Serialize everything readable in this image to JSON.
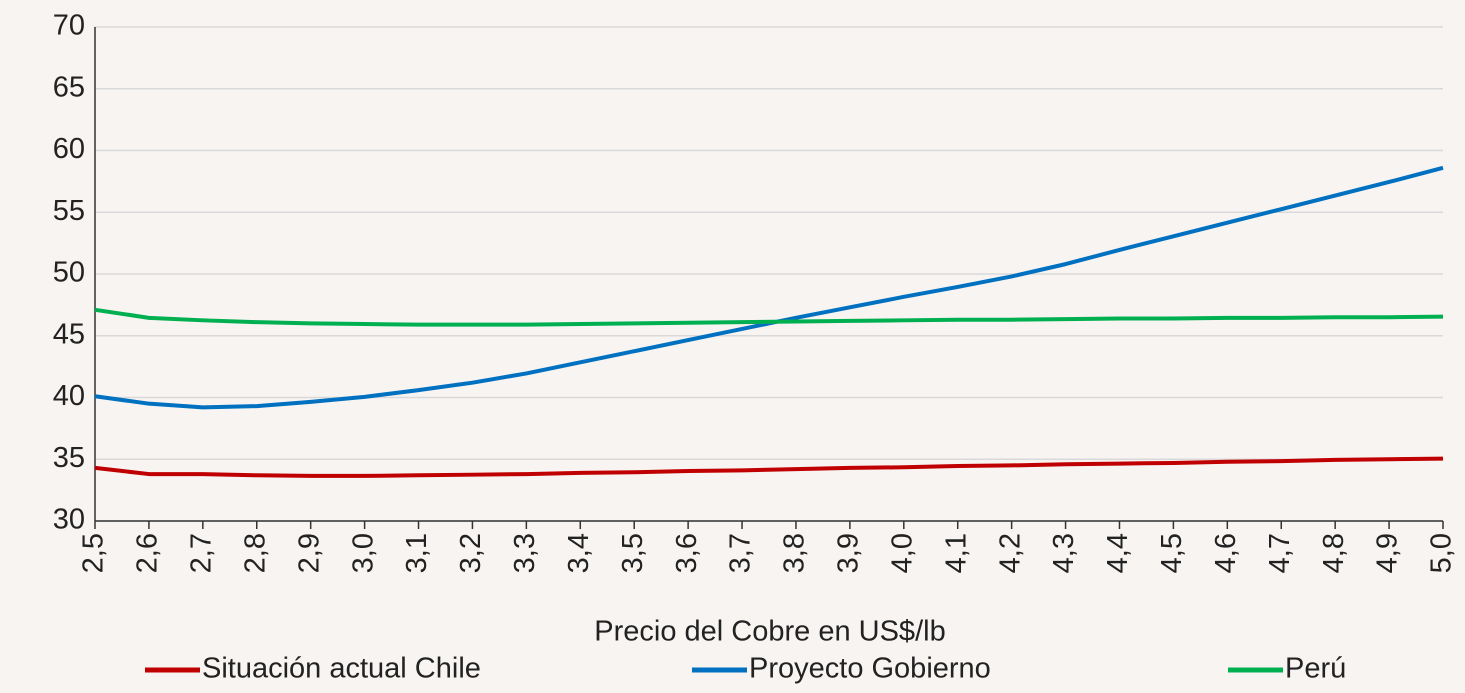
{
  "chart_data": {
    "type": "line",
    "x_label": "Precio del Cobre en US$/lb",
    "categories": [
      "2,5",
      "2,6",
      "2,7",
      "2,8",
      "2,9",
      "3,0",
      "3,1",
      "3,2",
      "3,3",
      "3,4",
      "3,5",
      "3,6",
      "3,7",
      "3,8",
      "3,9",
      "4,0",
      "4,1",
      "4,2",
      "4,3",
      "4,4",
      "4,5",
      "4,6",
      "4,7",
      "4,8",
      "4,9",
      "5,0"
    ],
    "series": [
      {
        "name": "Situación actual Chile",
        "color": "#c00000",
        "values": [
          34.3,
          33.8,
          33.8,
          33.7,
          33.65,
          33.65,
          33.7,
          33.75,
          33.8,
          33.9,
          33.95,
          34.05,
          34.1,
          34.2,
          34.3,
          34.35,
          34.45,
          34.5,
          34.6,
          34.65,
          34.7,
          34.8,
          34.85,
          34.95,
          35.0,
          35.05
        ]
      },
      {
        "name": "Proyecto Gobierno",
        "color": "#0070c0",
        "values": [
          40.1,
          39.5,
          39.2,
          39.3,
          39.65,
          40.05,
          40.6,
          41.2,
          41.95,
          42.85,
          43.75,
          44.65,
          45.55,
          46.45,
          47.3,
          48.15,
          48.95,
          49.8,
          50.8,
          51.95,
          53.05,
          54.15,
          55.25,
          56.35,
          57.45,
          58.6
        ]
      },
      {
        "name": "Perú",
        "color": "#00b050",
        "values": [
          47.1,
          46.45,
          46.25,
          46.1,
          46.0,
          45.95,
          45.9,
          45.9,
          45.9,
          45.95,
          46.0,
          46.05,
          46.1,
          46.15,
          46.2,
          46.25,
          46.3,
          46.3,
          46.35,
          46.4,
          46.4,
          46.45,
          46.45,
          46.5,
          46.5,
          46.55
        ]
      }
    ],
    "ylim": [
      30,
      70
    ],
    "yticks": [
      30,
      35,
      40,
      45,
      50,
      55,
      60,
      65,
      70
    ],
    "grid": true,
    "legend": "bottom"
  }
}
